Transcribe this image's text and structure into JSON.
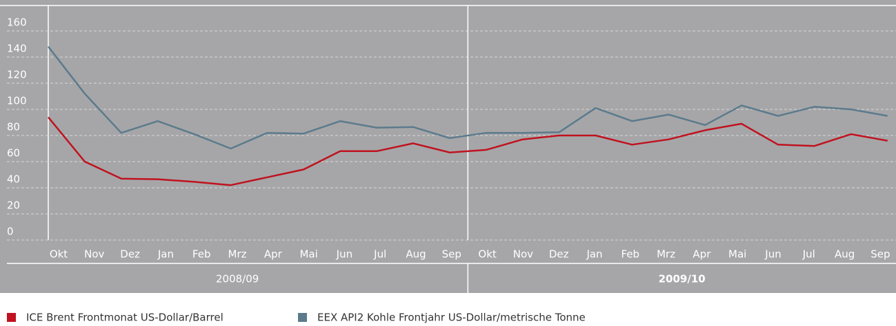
{
  "chart_data": {
    "type": "line",
    "categories": [
      "Okt",
      "Nov",
      "Dez",
      "Jan",
      "Feb",
      "Mrz",
      "Apr",
      "Mai",
      "Jun",
      "Jul",
      "Aug",
      "Sep",
      "Okt",
      "Nov",
      "Dez",
      "Jan",
      "Feb",
      "Mrz",
      "Apr",
      "Mai",
      "Jun",
      "Jul",
      "Aug",
      "Sep"
    ],
    "periods": [
      "2008/09",
      "2009/10"
    ],
    "series": [
      {
        "name": "ICE Brent Frontmonat US-Dollar/Barrel",
        "color": "#c0121f",
        "values": [
          94,
          60,
          47,
          46.5,
          44.5,
          42,
          48,
          54,
          68,
          68,
          74,
          67,
          69,
          77,
          80,
          80,
          73,
          77,
          84,
          89,
          73,
          72,
          81,
          76
        ]
      },
      {
        "name": "EEX API2 Kohle Frontjahr US-Dollar/metrische Tonne",
        "color": "#5b7b8c",
        "values": [
          148,
          112,
          82,
          91,
          81,
          70,
          82,
          81.5,
          91,
          86,
          86.5,
          78,
          82,
          82,
          82.5,
          101,
          91,
          96,
          88,
          103,
          95,
          102,
          100,
          95
        ]
      }
    ],
    "ylim": [
      0,
      160
    ],
    "yticks": [
      0,
      20,
      40,
      60,
      80,
      100,
      120,
      140,
      160
    ],
    "grid": true
  }
}
